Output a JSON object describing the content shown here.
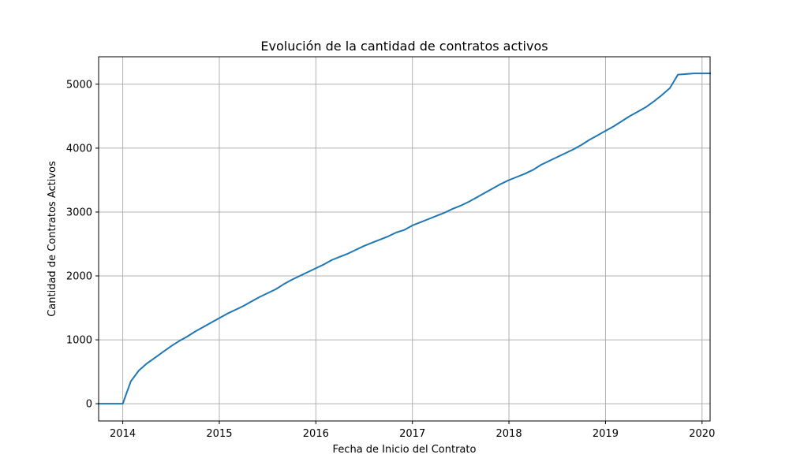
{
  "chart_data": {
    "type": "line",
    "title": "Evolución de la cantidad de contratos activos",
    "xlabel": "Fecha de Inicio del Contrato",
    "ylabel": "Cantidad de Contratos Activos",
    "x_ticks": [
      "2014",
      "2015",
      "2016",
      "2017",
      "2018",
      "2019",
      "2020"
    ],
    "y_ticks": [
      "0",
      "1000",
      "2000",
      "3000",
      "4000",
      "5000"
    ],
    "xlim": [
      "2013-10",
      "2020-02"
    ],
    "ylim": [
      -270,
      5430
    ],
    "grid": true,
    "line_color": "#1f77b4",
    "grid_color": "#b0b0b0",
    "series": [
      {
        "x": [
          "2013-10",
          "2013-11",
          "2013-12",
          "2014-01",
          "2014-02",
          "2014-03",
          "2014-04",
          "2014-05",
          "2014-06",
          "2014-07",
          "2014-08",
          "2014-09",
          "2014-10",
          "2014-11",
          "2014-12",
          "2015-01",
          "2015-02",
          "2015-03",
          "2015-04",
          "2015-05",
          "2015-06",
          "2015-07",
          "2015-08",
          "2015-09",
          "2015-10",
          "2015-11",
          "2015-12",
          "2016-01",
          "2016-02",
          "2016-03",
          "2016-04",
          "2016-05",
          "2016-06",
          "2016-07",
          "2016-08",
          "2016-09",
          "2016-10",
          "2016-11",
          "2016-12",
          "2017-01",
          "2017-02",
          "2017-03",
          "2017-04",
          "2017-05",
          "2017-06",
          "2017-07",
          "2017-08",
          "2017-09",
          "2017-10",
          "2017-11",
          "2017-12",
          "2018-01",
          "2018-02",
          "2018-03",
          "2018-04",
          "2018-05",
          "2018-06",
          "2018-07",
          "2018-08",
          "2018-09",
          "2018-10",
          "2018-11",
          "2018-12",
          "2019-01",
          "2019-02",
          "2019-03",
          "2019-04",
          "2019-05",
          "2019-06",
          "2019-07",
          "2019-08",
          "2019-09",
          "2019-10",
          "2019-11",
          "2019-12",
          "2020-01",
          "2020-02"
        ],
        "values": [
          0,
          0,
          0,
          0,
          350,
          520,
          630,
          720,
          810,
          900,
          980,
          1050,
          1130,
          1200,
          1270,
          1340,
          1410,
          1470,
          1530,
          1600,
          1670,
          1730,
          1790,
          1870,
          1940,
          2000,
          2060,
          2120,
          2180,
          2250,
          2300,
          2350,
          2410,
          2470,
          2520,
          2570,
          2620,
          2680,
          2720,
          2790,
          2840,
          2890,
          2940,
          2990,
          3050,
          3100,
          3160,
          3230,
          3300,
          3370,
          3440,
          3500,
          3550,
          3600,
          3660,
          3740,
          3800,
          3860,
          3920,
          3980,
          4050,
          4130,
          4200,
          4270,
          4340,
          4420,
          4500,
          4570,
          4640,
          4730,
          4830,
          4940,
          5150,
          5160,
          5170,
          5170,
          5170
        ]
      }
    ]
  }
}
